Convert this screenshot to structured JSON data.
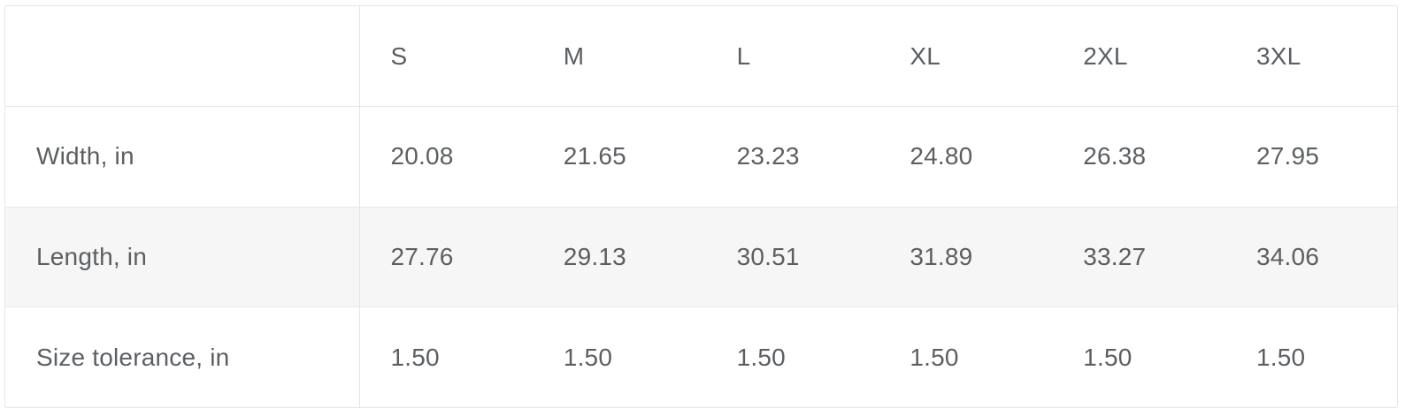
{
  "size_chart": {
    "sizes": [
      "S",
      "M",
      "L",
      "XL",
      "2XL",
      "3XL"
    ],
    "rows": [
      {
        "label": "Width, in",
        "values": [
          "20.08",
          "21.65",
          "23.23",
          "24.80",
          "26.38",
          "27.95"
        ]
      },
      {
        "label": "Length, in",
        "values": [
          "27.76",
          "29.13",
          "30.51",
          "31.89",
          "33.27",
          "34.06"
        ]
      },
      {
        "label": "Size tolerance, in",
        "values": [
          "1.50",
          "1.50",
          "1.50",
          "1.50",
          "1.50",
          "1.50"
        ]
      }
    ]
  },
  "colors": {
    "text": "#5b5f62",
    "border": "#e3e5e6",
    "stripe": "#f6f6f6"
  }
}
